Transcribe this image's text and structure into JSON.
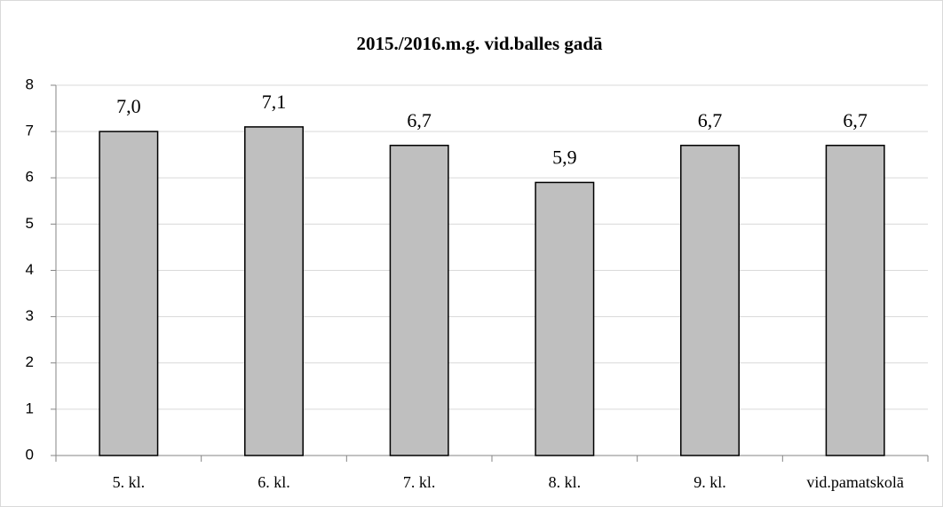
{
  "chart_data": {
    "type": "bar",
    "title": "2015./2016.m.g. vid.balles gadā",
    "categories": [
      "5. kl.",
      "6. kl.",
      "7. kl.",
      "8. kl.",
      "9. kl.",
      "vid.pamatskolā"
    ],
    "values": [
      7.0,
      7.1,
      6.7,
      5.9,
      6.7,
      6.7
    ],
    "value_labels": [
      "7,0",
      "7,1",
      "6,7",
      "5,9",
      "6,7",
      "6,7"
    ],
    "color": "#bfbfbf",
    "ylim": [
      0,
      8
    ],
    "yticks": [
      0,
      1,
      2,
      3,
      4,
      5,
      6,
      7,
      8
    ],
    "grid": true
  }
}
